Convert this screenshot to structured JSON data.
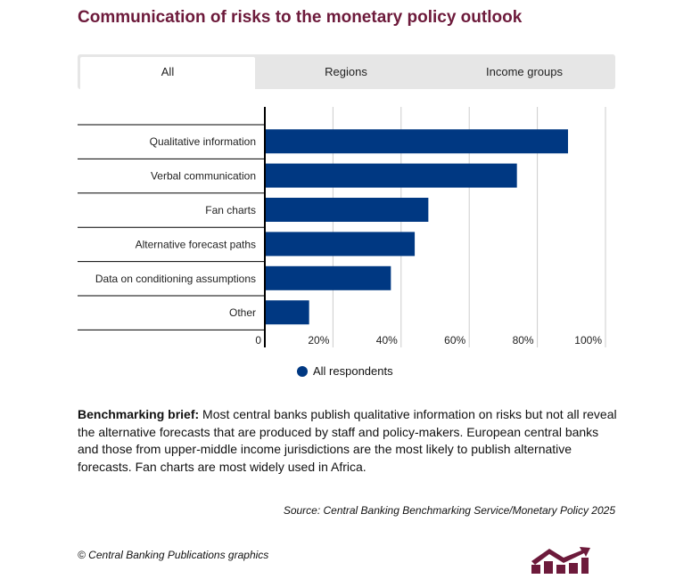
{
  "title": "Communication of risks to the monetary policy outlook",
  "tabs": [
    {
      "label": "All",
      "active": true
    },
    {
      "label": "Regions",
      "active": false
    },
    {
      "label": "Income groups",
      "active": false
    }
  ],
  "chart_data": {
    "type": "bar",
    "orientation": "horizontal",
    "categories": [
      "Qualitative information",
      "Verbal communication",
      "Fan charts",
      "Alternative forecast paths",
      "Data on conditioning assumptions",
      "Other"
    ],
    "series": [
      {
        "name": "All respondents",
        "values": [
          89,
          74,
          48,
          44,
          37,
          13
        ],
        "color": "#003882"
      }
    ],
    "xlim": [
      0,
      100
    ],
    "xticks": [
      "0",
      "20%",
      "40%",
      "60%",
      "80%",
      "100%"
    ],
    "grid": true,
    "legend": "bottom"
  },
  "brief": {
    "label": "Benchmarking brief:",
    "text": " Most central banks publish qualitative information on risks but not all reveal the alternative forecasts that are produced by staff and policy-makers. European central banks and those from upper-middle income jurisdictions are the most likely to publish alternative forecasts. Fan charts are most widely used in Africa."
  },
  "source": "Source: Central Banking Benchmarking Service/Monetary Policy 2025",
  "copyright": "© Central Banking Publications graphics",
  "brand_color": "#6d1a3b"
}
